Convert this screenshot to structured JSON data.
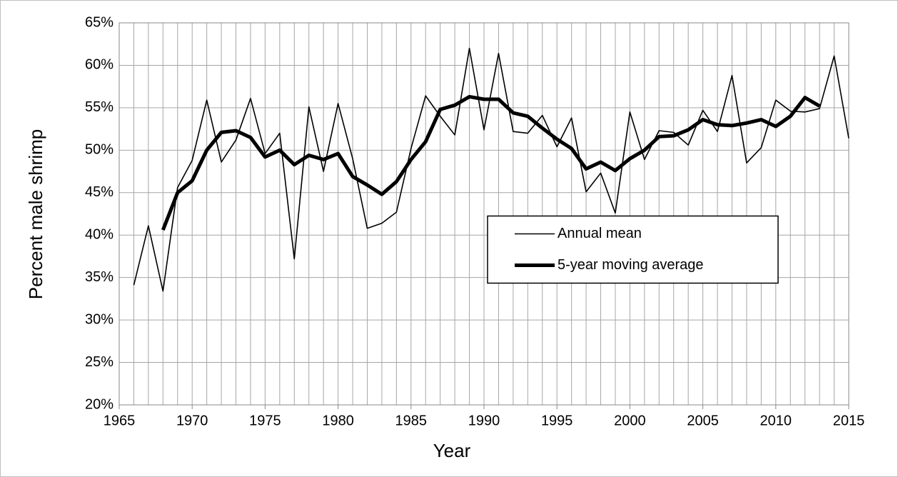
{
  "chart_data": {
    "type": "line",
    "x_label": "Year",
    "y_label": "Percent male shrimp",
    "x": [
      1966,
      1967,
      1968,
      1969,
      1970,
      1971,
      1972,
      1973,
      1974,
      1975,
      1976,
      1977,
      1978,
      1979,
      1980,
      1981,
      1982,
      1983,
      1984,
      1985,
      1986,
      1987,
      1988,
      1989,
      1990,
      1991,
      1992,
      1993,
      1994,
      1995,
      1996,
      1997,
      1998,
      1999,
      2000,
      2001,
      2002,
      2003,
      2004,
      2005,
      2006,
      2007,
      2008,
      2009,
      2010,
      2011,
      2012,
      2013,
      2014,
      2015
    ],
    "series": [
      {
        "name": "Annual mean",
        "color": "#000000",
        "line_width": 1.6,
        "values": [
          34.1,
          41.1,
          33.4,
          45.6,
          48.8,
          55.9,
          48.6,
          51.2,
          56.1,
          49.6,
          52.0,
          37.2,
          55.1,
          47.5,
          55.5,
          49.0,
          40.8,
          41.4,
          42.7,
          50.2,
          56.4,
          54.0,
          51.8,
          62.0,
          52.4,
          61.4,
          52.2,
          52.0,
          54.1,
          50.4,
          53.8,
          45.1,
          47.3,
          42.6,
          54.5,
          48.9,
          52.3,
          52.1,
          50.6,
          54.7,
          52.2,
          58.8,
          48.5,
          50.3,
          55.9,
          54.6,
          54.5,
          54.9,
          61.1,
          51.4
        ]
      },
      {
        "name": "5-year moving average",
        "color": "#000000",
        "line_width": 5,
        "values": [
          null,
          null,
          40.6,
          45.0,
          46.4,
          50.0,
          52.1,
          52.3,
          51.5,
          49.2,
          50.0,
          48.3,
          49.4,
          48.9,
          49.6,
          46.9,
          45.9,
          44.8,
          46.3,
          48.9,
          51.0,
          54.8,
          55.3,
          56.3,
          56.0,
          56.0,
          54.4,
          54.0,
          52.6,
          51.3,
          50.2,
          47.8,
          48.6,
          47.6,
          49.0,
          50.0,
          51.6,
          51.7,
          52.4,
          53.6,
          53.0,
          52.9,
          53.2,
          53.6,
          52.8,
          54.0,
          56.2,
          55.2,
          null,
          null
        ]
      }
    ],
    "xlim": [
      1965,
      2015
    ],
    "xticks": [
      1965,
      1970,
      1975,
      1980,
      1985,
      1990,
      1995,
      2000,
      2005,
      2010,
      2015
    ],
    "x_minor_grid_step": 1,
    "ylim": [
      20,
      65
    ],
    "yticks": [
      {
        "value": 20,
        "label": "20%"
      },
      {
        "value": 25,
        "label": "25%"
      },
      {
        "value": 30,
        "label": "30%"
      },
      {
        "value": 35,
        "label": "35%"
      },
      {
        "value": 40,
        "label": "40%"
      },
      {
        "value": 45,
        "label": "45%"
      },
      {
        "value": 50,
        "label": "50%"
      },
      {
        "value": 55,
        "label": "55%"
      },
      {
        "value": 60,
        "label": "60%"
      },
      {
        "value": 65,
        "label": "65%"
      }
    ],
    "grid": true,
    "legend": "center-right"
  }
}
